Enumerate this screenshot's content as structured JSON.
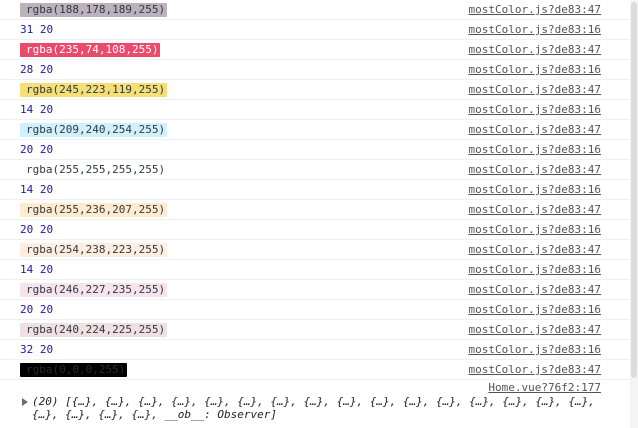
{
  "rows": [
    {
      "text": "rgba(188,178,189,255)",
      "bg": "#bcb2bd",
      "fg": "#303942",
      "src": "mostColor.js?de83:47",
      "kind": "color"
    },
    {
      "text": "31 20",
      "src": "mostColor.js?de83:16",
      "kind": "nums"
    },
    {
      "text": "rgba(235,74,108,255)",
      "bg": "#eb4a6c",
      "fg": "#ffffff",
      "src": "mostColor.js?de83:47",
      "kind": "color"
    },
    {
      "text": "28 20",
      "src": "mostColor.js?de83:16",
      "kind": "nums"
    },
    {
      "text": "rgba(245,223,119,255)",
      "bg": "#f5df77",
      "fg": "#303942",
      "src": "mostColor.js?de83:47",
      "kind": "color"
    },
    {
      "text": "14 20",
      "src": "mostColor.js?de83:16",
      "kind": "nums"
    },
    {
      "text": "rgba(209,240,254,255)",
      "bg": "#d1f0fe",
      "fg": "#303942",
      "src": "mostColor.js?de83:47",
      "kind": "color"
    },
    {
      "text": "20 20",
      "src": "mostColor.js?de83:16",
      "kind": "nums"
    },
    {
      "text": "rgba(255,255,255,255)",
      "bg": "#ffffff",
      "fg": "#303942",
      "src": "mostColor.js?de83:47",
      "kind": "color"
    },
    {
      "text": "14 20",
      "src": "mostColor.js?de83:16",
      "kind": "nums"
    },
    {
      "text": "rgba(255,236,207,255)",
      "bg": "#ffeccf",
      "fg": "#303942",
      "src": "mostColor.js?de83:47",
      "kind": "color"
    },
    {
      "text": "20 20",
      "src": "mostColor.js?de83:16",
      "kind": "nums"
    },
    {
      "text": "rgba(254,238,223,255)",
      "bg": "#feeedf",
      "fg": "#303942",
      "src": "mostColor.js?de83:47",
      "kind": "color"
    },
    {
      "text": "14 20",
      "src": "mostColor.js?de83:16",
      "kind": "nums"
    },
    {
      "text": "rgba(246,227,235,255)",
      "bg": "#f6e3eb",
      "fg": "#303942",
      "src": "mostColor.js?de83:47",
      "kind": "color"
    },
    {
      "text": "20 20",
      "src": "mostColor.js?de83:16",
      "kind": "nums"
    },
    {
      "text": "rgba(240,224,225,255)",
      "bg": "#f0e0e1",
      "fg": "#303942",
      "src": "mostColor.js?de83:47",
      "kind": "color"
    },
    {
      "text": "32 20",
      "src": "mostColor.js?de83:16",
      "kind": "nums"
    },
    {
      "text": "rgba(0,0,0,255)",
      "bg": "#000000",
      "fg": "#2a2a2a",
      "src": "mostColor.js?de83:47",
      "kind": "color"
    }
  ],
  "home_source": "Home.vue?76f2:177",
  "array_line_1": "(20) [{…}, {…}, {…}, {…}, {…}, {…}, {…}, {…}, {…}, {…}, {…}, {…}, {…}, {…}, {…}, {…},",
  "array_line_2": "{…}, {…}, {…}, {…}, __ob__: Observer]"
}
